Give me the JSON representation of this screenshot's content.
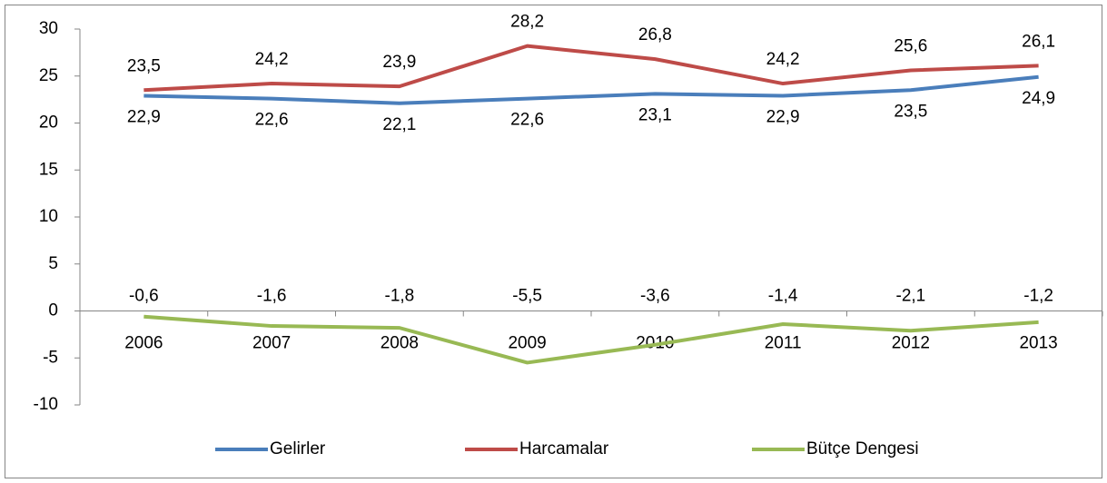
{
  "chart_data": {
    "type": "line",
    "categories": [
      "2006",
      "2007",
      "2008",
      "2009",
      "2010",
      "2011",
      "2012",
      "2013"
    ],
    "series": [
      {
        "name": "Gelirler",
        "color": "#4a7ebb",
        "values": [
          22.9,
          22.6,
          22.1,
          22.6,
          23.1,
          22.9,
          23.5,
          24.9
        ],
        "value_labels": [
          "22,9",
          "22,6",
          "22,1",
          "22,6",
          "23,1",
          "22,9",
          "23,5",
          "24,9"
        ]
      },
      {
        "name": "Harcamalar",
        "color": "#be4b48",
        "values": [
          23.5,
          24.2,
          23.9,
          28.2,
          26.8,
          24.2,
          25.6,
          26.1
        ],
        "value_labels": [
          "23,5",
          "24,2",
          "23,9",
          "28,2",
          "26,8",
          "24,2",
          "25,6",
          "26,1"
        ]
      },
      {
        "name": "Bütçe Dengesi",
        "color": "#98b954",
        "values": [
          -0.6,
          -1.6,
          -1.8,
          -5.5,
          -3.6,
          -1.4,
          -2.1,
          -1.2
        ],
        "value_labels": [
          "-0,6",
          "-1,6",
          "-1,8",
          "-5,5",
          "-3,6",
          "-1,4",
          "-2,1",
          "-1,2"
        ]
      }
    ],
    "ylim": [
      -10,
      30
    ],
    "yticks": [
      -10,
      -5,
      0,
      5,
      10,
      15,
      20,
      25,
      30
    ],
    "legend": "bottom"
  }
}
